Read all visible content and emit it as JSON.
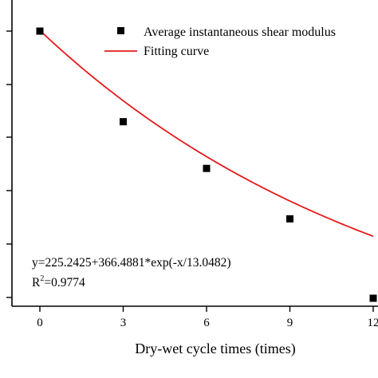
{
  "chart_data": {
    "type": "scatter",
    "xlabel": "Dry-wet cycle times (times)",
    "ylabel": "",
    "x_ticks": [
      "0",
      "3",
      "6",
      "9",
      "12"
    ],
    "xlim": [
      -1,
      12
    ],
    "ylim": [
      200,
      610
    ],
    "grid": false,
    "legend_placement": "top-right",
    "series": [
      {
        "name": "Average instantaneous shear modulus",
        "type": "scatter",
        "marker": "square",
        "color": "#000000",
        "x": [
          0,
          3,
          6,
          9,
          12
        ],
        "y": [
          591,
          494,
          444,
          390,
          305
        ]
      },
      {
        "name": "Fitting curve",
        "type": "line",
        "color": "#e41a1c",
        "equation": {
          "y0": 225.2425,
          "A": 366.4881,
          "t": 13.0482
        }
      }
    ],
    "annotations": {
      "equation": "y=225.2425+366.4881*exp(-x/13.0482)",
      "r2_prefix": "R",
      "r2_sup": "2",
      "r2_value": "=0.9774"
    }
  }
}
